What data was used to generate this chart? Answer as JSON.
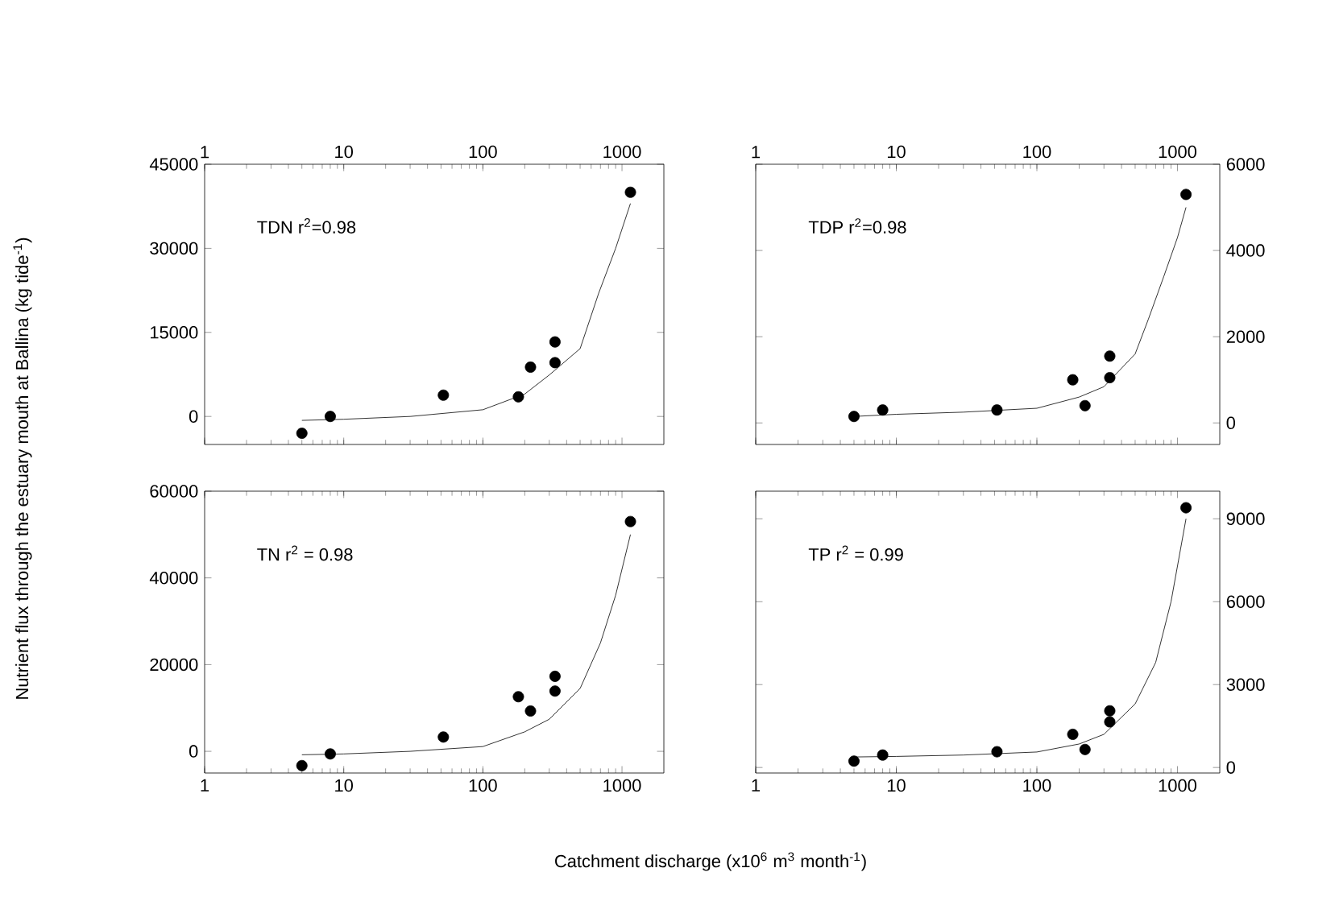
{
  "chart_data": [
    {
      "type": "scatter",
      "ylabel": "Nutrient flux through the estuary mouth at Ballina (kg tide$^{-1}$)",
      "annotations": [
        "TDN r$^{2}$=0.98"
      ],
      "log": "x",
      "xlim": [
        1,
        2000
      ],
      "xticks": [
        1,
        10,
        100,
        1000
      ],
      "ylim": [
        -5000,
        45000
      ],
      "yticks": [
        0,
        15000,
        30000,
        45000
      ],
      "series": [
        {
          "color": "#000000",
          "marker": "circle",
          "x": [
            5,
            8,
            52,
            180,
            220,
            330,
            330,
            1150
          ],
          "values": [
            -3000,
            0,
            3800,
            3500,
            8800,
            13300,
            9600,
            40000
          ]
        },
        {
          "type": "line",
          "color": "#000000",
          "x": [
            5,
            10,
            30,
            100,
            200,
            300,
            500,
            680,
            900,
            1150
          ],
          "values": [
            -700,
            -500,
            0,
            1200,
            4000,
            7400,
            12100,
            22000,
            30000,
            38000
          ]
        }
      ]
    },
    {
      "type": "scatter",
      "annotations": [
        "TDP r$^{2}$=0.98"
      ],
      "log": "x",
      "xlim": [
        1,
        2000
      ],
      "xticks": [
        1,
        10,
        100,
        1000
      ],
      "y2lim": [
        -500,
        6000
      ],
      "y2ticks": [
        0,
        2000,
        4000,
        6000
      ],
      "series": [
        {
          "color": "#000000",
          "marker": "circle",
          "axis": "y2",
          "x": [
            5,
            8,
            52,
            180,
            220,
            330,
            330,
            1150
          ],
          "values": [
            150,
            300,
            300,
            1000,
            400,
            1550,
            1050,
            5300
          ]
        },
        {
          "type": "line",
          "color": "#000000",
          "axis": "y2",
          "x": [
            5,
            10,
            30,
            100,
            200,
            300,
            500,
            620,
            800,
            1000,
            1150
          ],
          "values": [
            150,
            200,
            250,
            340,
            600,
            840,
            1600,
            2400,
            3400,
            4300,
            5000
          ]
        }
      ]
    },
    {
      "type": "scatter",
      "xlabel": "Catchment discharge (x10$^{6}$ m$^{3}$ month$^{-1}$)",
      "annotations": [
        "TN r$^{2}$ = 0.98"
      ],
      "log": "x",
      "xlim": [
        1,
        2000
      ],
      "xticks": [
        1,
        10,
        100,
        1000
      ],
      "ylim": [
        -5000,
        60000
      ],
      "yticks": [
        0,
        20000,
        40000,
        60000
      ],
      "series": [
        {
          "color": "#000000",
          "marker": "circle",
          "x": [
            5,
            8,
            52,
            180,
            220,
            330,
            330,
            1150
          ],
          "values": [
            -3300,
            -600,
            3300,
            12600,
            9300,
            17300,
            13900,
            53000
          ]
        },
        {
          "type": "line",
          "color": "#000000",
          "x": [
            5,
            10,
            30,
            100,
            200,
            300,
            500,
            700,
            900,
            1150
          ],
          "values": [
            -800,
            -600,
            0,
            1100,
            4500,
            7400,
            14500,
            25000,
            36000,
            50000
          ]
        }
      ]
    },
    {
      "type": "scatter",
      "annotations": [
        "TP r$^{2}$ = 0.99"
      ],
      "log": "x",
      "xlim": [
        1,
        2000
      ],
      "xticks": [
        1,
        10,
        100,
        1000
      ],
      "y2lim": [
        -200,
        10000
      ],
      "y2ticks": [
        0,
        3000,
        6000,
        9000
      ],
      "series": [
        {
          "color": "#000000",
          "marker": "circle",
          "axis": "y2",
          "x": [
            5,
            8,
            52,
            180,
            220,
            330,
            330,
            1150
          ],
          "values": [
            230,
            450,
            570,
            1200,
            650,
            2050,
            1650,
            9400
          ]
        },
        {
          "type": "line",
          "color": "#000000",
          "axis": "y2",
          "x": [
            5,
            10,
            30,
            100,
            200,
            300,
            500,
            700,
            900,
            1150
          ],
          "values": [
            380,
            400,
            450,
            560,
            850,
            1200,
            2300,
            3800,
            6000,
            9000
          ]
        }
      ]
    }
  ]
}
